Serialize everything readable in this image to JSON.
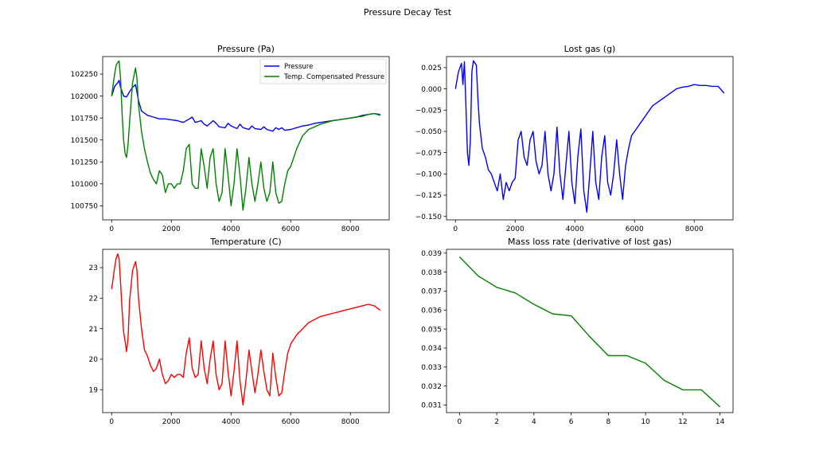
{
  "figure": {
    "title": "Pressure Decay Test"
  },
  "chart_data": [
    {
      "type": "line",
      "title": "Pressure (Pa)",
      "xlim": [
        -300,
        9300
      ],
      "ylim": [
        100590,
        102450
      ],
      "xticks": [
        0,
        2000,
        4000,
        6000,
        8000
      ],
      "yticks": [
        100750,
        101000,
        101250,
        101500,
        101750,
        102000,
        102250
      ],
      "legend": {
        "placement": "top-right"
      },
      "series": [
        {
          "name": "Pressure",
          "color": "#0000ff",
          "x": [
            0,
            100,
            200,
            250,
            300,
            400,
            500,
            600,
            700,
            800,
            900,
            1000,
            1200,
            1400,
            1600,
            1800,
            2000,
            2200,
            2400,
            2600,
            2700,
            2800,
            3000,
            3100,
            3200,
            3400,
            3500,
            3600,
            3800,
            3900,
            4000,
            4200,
            4300,
            4400,
            4600,
            4700,
            4800,
            5000,
            5100,
            5200,
            5400,
            5500,
            5600,
            5700,
            5800,
            6000,
            6200,
            6400,
            6600,
            6800,
            7000,
            7200,
            7400,
            7600,
            7800,
            8000,
            8200,
            8400,
            8600,
            8800,
            9000
          ],
          "y": [
            102000,
            102110,
            102150,
            102180,
            102100,
            102000,
            101990,
            102050,
            102100,
            102130,
            101950,
            101830,
            101780,
            101760,
            101740,
            101740,
            101730,
            101720,
            101700,
            101740,
            101760,
            101700,
            101720,
            101680,
            101660,
            101720,
            101690,
            101650,
            101640,
            101690,
            101660,
            101630,
            101680,
            101640,
            101620,
            101660,
            101630,
            101620,
            101650,
            101620,
            101600,
            101640,
            101620,
            101640,
            101610,
            101620,
            101640,
            101660,
            101670,
            101690,
            101700,
            101710,
            101720,
            101730,
            101740,
            101750,
            101760,
            101780,
            101790,
            101800,
            101790
          ]
        },
        {
          "name": "Temp. Compensated Pressure",
          "color": "#008000",
          "x": [
            0,
            100,
            150,
            200,
            250,
            300,
            350,
            400,
            450,
            500,
            550,
            600,
            700,
            800,
            850,
            900,
            1000,
            1100,
            1200,
            1300,
            1400,
            1500,
            1600,
            1700,
            1800,
            1900,
            2000,
            2100,
            2200,
            2300,
            2400,
            2500,
            2600,
            2700,
            2800,
            2900,
            3000,
            3100,
            3200,
            3300,
            3400,
            3500,
            3600,
            3700,
            3800,
            3900,
            4000,
            4100,
            4200,
            4300,
            4400,
            4500,
            4600,
            4700,
            4800,
            4900,
            5000,
            5100,
            5200,
            5300,
            5400,
            5500,
            5600,
            5700,
            5800,
            5900,
            6000,
            6200,
            6400,
            6600,
            6800,
            7000,
            7200,
            7400,
            7600,
            7800,
            8000,
            8200,
            8400,
            8600,
            8800,
            9000
          ],
          "y": [
            102000,
            102250,
            102350,
            102380,
            102400,
            102200,
            101800,
            101500,
            101350,
            101300,
            101450,
            101700,
            102150,
            102320,
            102200,
            101900,
            101600,
            101400,
            101250,
            101120,
            101050,
            101000,
            101150,
            101100,
            100900,
            101000,
            101000,
            100950,
            101000,
            101000,
            101150,
            101400,
            101450,
            101000,
            100950,
            100950,
            101400,
            101200,
            100950,
            101300,
            101400,
            101000,
            100800,
            100900,
            101400,
            101100,
            100750,
            101000,
            101400,
            101100,
            100700,
            100950,
            101300,
            101000,
            100800,
            101000,
            101250,
            100950,
            100800,
            100900,
            101250,
            100900,
            100780,
            100800,
            101000,
            101150,
            101200,
            101400,
            101550,
            101620,
            101650,
            101680,
            101700,
            101720,
            101730,
            101740,
            101750,
            101760,
            101770,
            101790,
            101800,
            101780
          ]
        }
      ]
    },
    {
      "type": "line",
      "title": "Lost gas (g)",
      "xlim": [
        -300,
        9300
      ],
      "ylim": [
        -0.154,
        0.038
      ],
      "xticks": [
        0,
        2000,
        4000,
        6000,
        8000
      ],
      "yticks": [
        -0.15,
        -0.125,
        -0.1,
        -0.075,
        -0.05,
        -0.025,
        0.0,
        0.025
      ],
      "ytick_labels": [
        "−0.150",
        "−0.125",
        "−0.100",
        "−0.075",
        "−0.050",
        "−0.025",
        "0.000",
        "0.025"
      ],
      "series": [
        {
          "name": "Lost gas",
          "color": "#0000ff",
          "x": [
            0,
            50,
            100,
            200,
            250,
            300,
            350,
            400,
            450,
            500,
            550,
            600,
            700,
            750,
            800,
            900,
            1000,
            1100,
            1200,
            1300,
            1400,
            1500,
            1600,
            1700,
            1800,
            1900,
            2000,
            2100,
            2200,
            2300,
            2400,
            2500,
            2600,
            2700,
            2800,
            2900,
            3000,
            3100,
            3200,
            3300,
            3400,
            3500,
            3600,
            3700,
            3800,
            3900,
            4000,
            4100,
            4200,
            4300,
            4400,
            4500,
            4600,
            4700,
            4800,
            4900,
            5000,
            5100,
            5200,
            5300,
            5400,
            5500,
            5600,
            5700,
            5800,
            5900,
            6000,
            6200,
            6400,
            6600,
            6800,
            7000,
            7200,
            7400,
            7600,
            7800,
            8000,
            8200,
            8400,
            8600,
            8800,
            9000
          ],
          "y": [
            0.0,
            0.01,
            0.02,
            0.03,
            0.005,
            0.032,
            -0.02,
            -0.075,
            -0.09,
            -0.06,
            0.02,
            0.033,
            0.028,
            -0.01,
            -0.04,
            -0.07,
            -0.08,
            -0.095,
            -0.1,
            -0.11,
            -0.12,
            -0.1,
            -0.13,
            -0.11,
            -0.12,
            -0.11,
            -0.105,
            -0.06,
            -0.05,
            -0.08,
            -0.09,
            -0.06,
            -0.05,
            -0.085,
            -0.1,
            -0.09,
            -0.05,
            -0.1,
            -0.12,
            -0.1,
            -0.045,
            -0.1,
            -0.13,
            -0.09,
            -0.05,
            -0.11,
            -0.135,
            -0.08,
            -0.047,
            -0.12,
            -0.145,
            -0.1,
            -0.05,
            -0.11,
            -0.13,
            -0.08,
            -0.055,
            -0.11,
            -0.125,
            -0.1,
            -0.06,
            -0.1,
            -0.13,
            -0.09,
            -0.07,
            -0.055,
            -0.05,
            -0.04,
            -0.03,
            -0.02,
            -0.015,
            -0.01,
            -0.005,
            0.0,
            0.002,
            0.003,
            0.005,
            0.004,
            0.004,
            0.003,
            0.003,
            -0.005
          ]
        }
      ]
    },
    {
      "type": "line",
      "title": "Temperature (C)",
      "xlim": [
        -300,
        9300
      ],
      "ylim": [
        18.25,
        23.6
      ],
      "xticks": [
        0,
        2000,
        4000,
        6000,
        8000
      ],
      "yticks": [
        19,
        20,
        21,
        22,
        23
      ],
      "series": [
        {
          "name": "Temperature",
          "color": "#ff0000",
          "x": [
            0,
            100,
            150,
            200,
            250,
            300,
            350,
            400,
            450,
            500,
            550,
            600,
            700,
            800,
            850,
            900,
            1000,
            1100,
            1200,
            1300,
            1400,
            1500,
            1600,
            1700,
            1800,
            1900,
            2000,
            2100,
            2200,
            2300,
            2400,
            2500,
            2600,
            2700,
            2800,
            2900,
            3000,
            3100,
            3200,
            3300,
            3400,
            3500,
            3600,
            3700,
            3800,
            3900,
            4000,
            4100,
            4200,
            4300,
            4400,
            4500,
            4600,
            4700,
            4800,
            4900,
            5000,
            5100,
            5200,
            5300,
            5400,
            5500,
            5600,
            5700,
            5800,
            5900,
            6000,
            6200,
            6400,
            6600,
            6800,
            7000,
            7200,
            7400,
            7600,
            7800,
            8000,
            8200,
            8400,
            8600,
            8800,
            9000
          ],
          "y": [
            22.3,
            23.0,
            23.3,
            23.45,
            23.3,
            22.5,
            21.6,
            20.9,
            20.6,
            20.25,
            20.7,
            21.9,
            22.9,
            23.2,
            22.9,
            22.0,
            21.0,
            20.3,
            20.1,
            19.8,
            19.6,
            19.7,
            20.0,
            19.5,
            19.2,
            19.3,
            19.5,
            19.4,
            19.5,
            19.5,
            19.4,
            20.2,
            20.7,
            19.7,
            19.4,
            19.5,
            20.6,
            19.7,
            19.2,
            20.0,
            20.6,
            19.5,
            19.0,
            19.2,
            20.6,
            19.6,
            18.8,
            19.6,
            20.6,
            19.3,
            18.5,
            19.3,
            20.3,
            19.6,
            18.9,
            19.5,
            20.3,
            19.6,
            19.0,
            18.8,
            20.2,
            19.4,
            18.8,
            18.9,
            19.6,
            20.2,
            20.5,
            20.8,
            21.0,
            21.2,
            21.3,
            21.4,
            21.45,
            21.5,
            21.55,
            21.6,
            21.65,
            21.7,
            21.75,
            21.8,
            21.75,
            21.6
          ]
        }
      ]
    },
    {
      "type": "line",
      "title": "Mass loss rate (derivative of lost gas)",
      "xlim": [
        -0.7,
        14.7
      ],
      "ylim": [
        0.0306,
        0.0392
      ],
      "xticks": [
        0,
        2,
        4,
        6,
        8,
        10,
        12,
        14
      ],
      "yticks": [
        0.031,
        0.032,
        0.033,
        0.034,
        0.035,
        0.036,
        0.037,
        0.038,
        0.039
      ],
      "series": [
        {
          "name": "Mass loss rate",
          "color": "#008000",
          "x": [
            0,
            1,
            2,
            3,
            4,
            5,
            6,
            7,
            8,
            9,
            10,
            11,
            12,
            13,
            14
          ],
          "y": [
            0.0388,
            0.0378,
            0.0372,
            0.0369,
            0.0363,
            0.0358,
            0.0357,
            0.0346,
            0.0336,
            0.0336,
            0.0332,
            0.0323,
            0.0318,
            0.0318,
            0.0309
          ]
        }
      ]
    }
  ]
}
